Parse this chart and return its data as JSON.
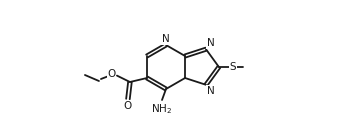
{
  "bg_color": "#ffffff",
  "line_color": "#1a1a1a",
  "lw": 1.3,
  "fs": 7.5,
  "xlim": [
    0,
    10
  ],
  "ylim": [
    0,
    7
  ],
  "figsize": [
    3.38,
    1.4
  ],
  "dpi": 100
}
